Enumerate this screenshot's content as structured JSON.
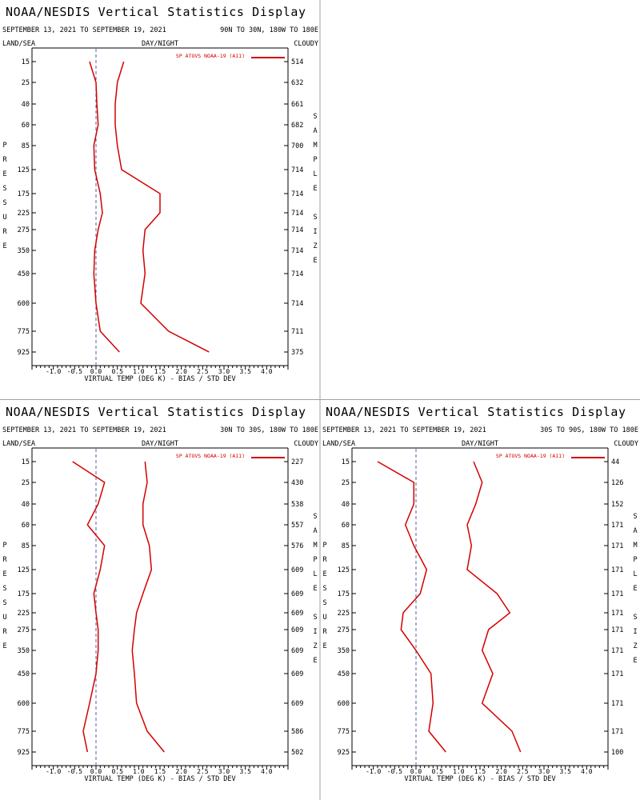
{
  "colors": {
    "panel_border": "#a0a0a0",
    "series": "#d40000",
    "zero_line": "#5060a0",
    "axis": "#000000"
  },
  "common": {
    "title": "NOAA/NESDIS Vertical Statistics Display",
    "date_range": "SEPTEMBER 13, 2021 TO SEPTEMBER 19, 2021",
    "land_sea": "LAND/SEA",
    "day_night": "DAY/NIGHT",
    "cloudy": "CLOUDY",
    "pressure_label": "PRESSURE",
    "sample_size_label": "SAMPLE SIZE",
    "xlabel": "VIRTUAL TEMP (DEG K) - BIAS / STD DEV",
    "legend": "SP ATOVS NOAA-19 (A11)"
  },
  "chart_data": [
    {
      "type": "line",
      "region": "90N TO 30N, 180W TO 180E",
      "pressure_levels": [
        "15",
        "25",
        "40",
        "60",
        "85",
        "125",
        "175",
        "225",
        "275",
        "350",
        "450",
        "600",
        "775",
        "925"
      ],
      "x_ticks": [
        "-1.0",
        "-0.5",
        "0.0",
        "0.5",
        "1.0",
        "1.5",
        "2.0",
        "2.5",
        "3.0",
        "3.5",
        "4.0"
      ],
      "xlim": [
        -1.5,
        4.5
      ],
      "sample_sizes": [
        "514",
        "632",
        "661",
        "682",
        "700",
        "714",
        "714",
        "714",
        "714",
        "714",
        "714",
        "714",
        "711",
        "375"
      ],
      "bias": [
        -0.15,
        0.0,
        0.02,
        0.05,
        -0.05,
        -0.03,
        0.1,
        0.15,
        0.05,
        -0.03,
        -0.05,
        0.0,
        0.1,
        0.55
      ],
      "std_dev": [
        0.65,
        0.5,
        0.45,
        0.45,
        0.5,
        0.6,
        1.5,
        1.5,
        1.15,
        1.1,
        1.15,
        1.05,
        1.7,
        2.65
      ]
    },
    {
      "type": "line",
      "region": "30N TO 30S, 180W TO 180E",
      "pressure_levels": [
        "15",
        "25",
        "40",
        "60",
        "85",
        "125",
        "175",
        "225",
        "275",
        "350",
        "450",
        "600",
        "775",
        "925"
      ],
      "x_ticks": [
        "-1.0",
        "-0.5",
        "0.0",
        "0.5",
        "1.0",
        "1.5",
        "2.0",
        "2.5",
        "3.0",
        "3.5",
        "4.0"
      ],
      "xlim": [
        -1.5,
        4.5
      ],
      "sample_sizes": [
        "227",
        "430",
        "538",
        "557",
        "576",
        "609",
        "609",
        "609",
        "609",
        "609",
        "609",
        "609",
        "586",
        "502"
      ],
      "bias": [
        -0.55,
        0.2,
        0.05,
        -0.2,
        0.2,
        0.1,
        -0.05,
        0.0,
        0.05,
        0.05,
        0.0,
        -0.15,
        -0.3,
        -0.2
      ],
      "std_dev": [
        1.15,
        1.2,
        1.1,
        1.1,
        1.25,
        1.3,
        1.1,
        0.95,
        0.9,
        0.85,
        0.9,
        0.95,
        1.2,
        1.6
      ]
    },
    {
      "type": "line",
      "region": "30S TO 90S, 180W TO 180E",
      "pressure_levels": [
        "15",
        "25",
        "40",
        "60",
        "85",
        "125",
        "175",
        "225",
        "275",
        "350",
        "450",
        "600",
        "775",
        "925"
      ],
      "x_ticks": [
        "-1.0",
        "-0.5",
        "0.0",
        "0.5",
        "1.0",
        "1.5",
        "2.0",
        "2.5",
        "3.0",
        "3.5",
        "4.0"
      ],
      "xlim": [
        -1.5,
        4.5
      ],
      "sample_sizes": [
        "44",
        "126",
        "152",
        "171",
        "171",
        "171",
        "171",
        "171",
        "171",
        "171",
        "171",
        "171",
        "171",
        "100"
      ],
      "bias": [
        -0.9,
        -0.05,
        -0.05,
        -0.25,
        -0.05,
        0.25,
        0.1,
        -0.3,
        -0.35,
        0.0,
        0.35,
        0.4,
        0.3,
        0.7
      ],
      "std_dev": [
        1.35,
        1.55,
        1.4,
        1.2,
        1.3,
        1.2,
        1.9,
        2.2,
        1.7,
        1.55,
        1.8,
        1.55,
        2.25,
        2.45
      ]
    }
  ]
}
